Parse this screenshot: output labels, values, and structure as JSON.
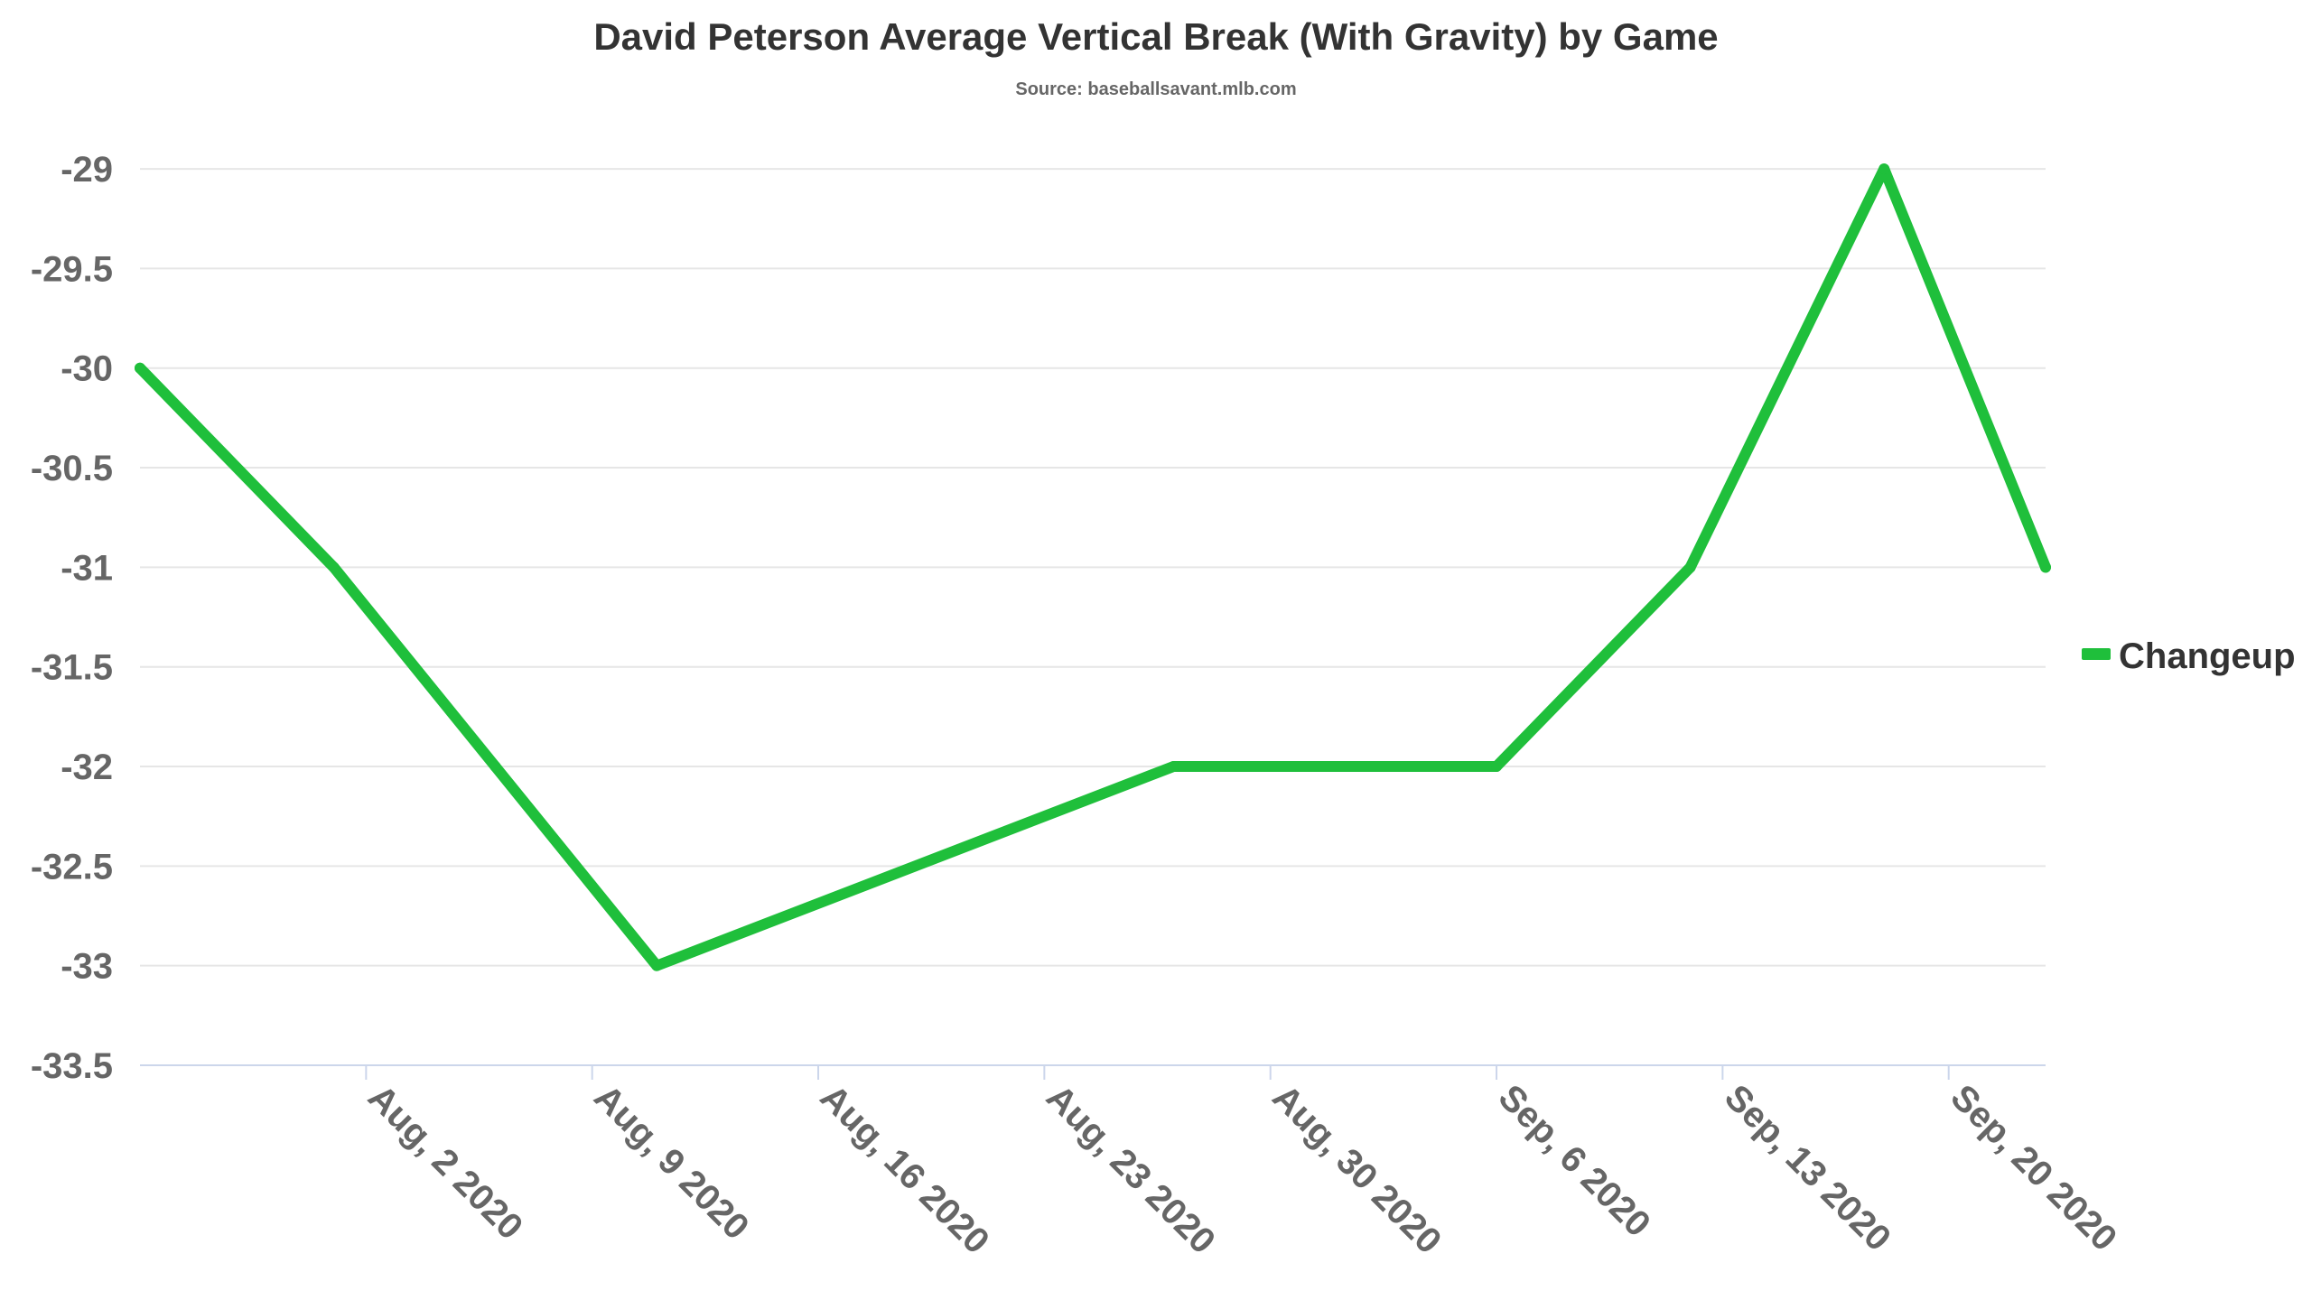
{
  "chart_data": {
    "type": "line",
    "title": "David Peterson Average Vertical Break (With Gravity) by Game",
    "subtitle": "Source: baseballsavant.mlb.com",
    "xlabel": "",
    "ylabel": "",
    "x_tick_labels": [
      "Aug, 2 2020",
      "Aug, 9 2020",
      "Aug, 16 2020",
      "Aug, 23 2020",
      "Aug, 30 2020",
      "Sep, 6 2020",
      "Sep, 13 2020",
      "Sep, 20 2020"
    ],
    "x_tick_dates": [
      "2020-08-02",
      "2020-08-09",
      "2020-08-16",
      "2020-08-23",
      "2020-08-30",
      "2020-09-06",
      "2020-09-13",
      "2020-09-20"
    ],
    "x_range": [
      "2020-07-26",
      "2020-09-23"
    ],
    "y_ticks": [
      -29,
      -29.5,
      -30,
      -30.5,
      -31,
      -31.5,
      -32,
      -32.5,
      -33,
      -33.5
    ],
    "ylim": [
      -33.5,
      -28.9
    ],
    "grid": true,
    "legend_position": "right",
    "series": [
      {
        "name": "Changeup",
        "color": "#1fbf3b",
        "points": [
          {
            "x": "2020-07-26",
            "y": -30
          },
          {
            "x": "2020-08-01",
            "y": -31
          },
          {
            "x": "2020-08-06",
            "y": -32
          },
          {
            "x": "2020-08-11",
            "y": -33
          },
          {
            "x": "2020-08-27",
            "y": -32
          },
          {
            "x": "2020-09-06",
            "y": -32
          },
          {
            "x": "2020-09-12",
            "y": -31
          },
          {
            "x": "2020-09-18",
            "y": -29
          },
          {
            "x": "2020-09-23",
            "y": -31
          }
        ]
      }
    ]
  }
}
